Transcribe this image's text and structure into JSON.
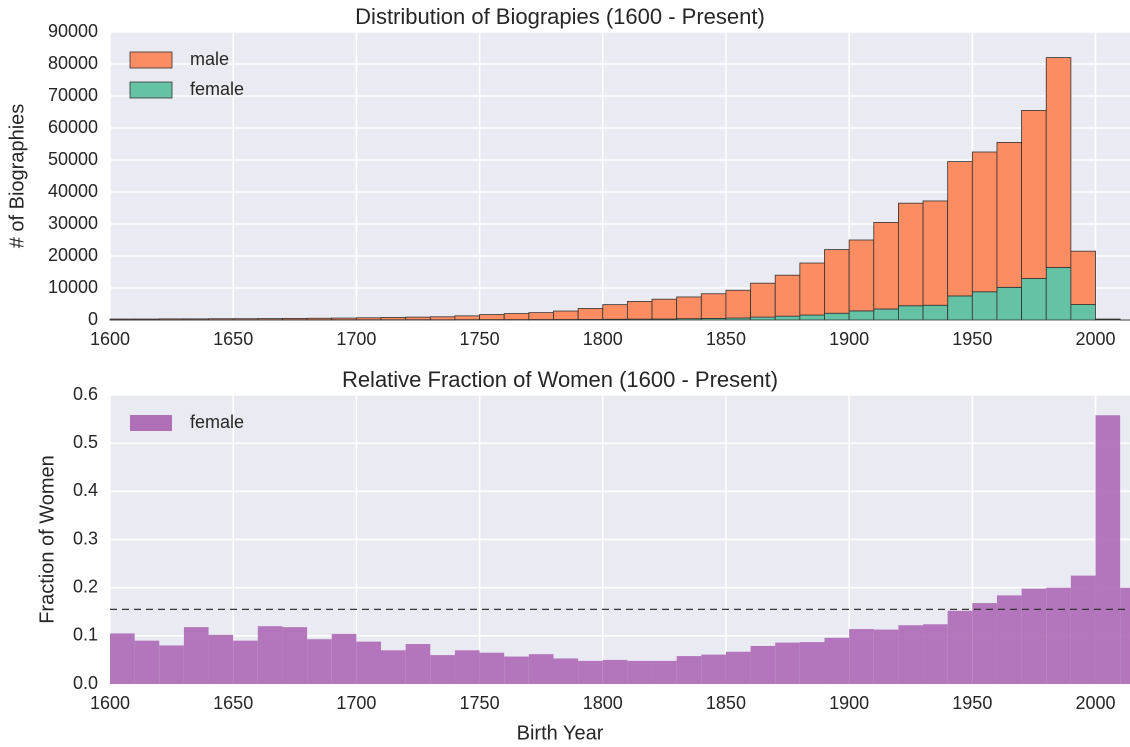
{
  "chart_data": [
    {
      "type": "histogram",
      "title": "Distribution of Biograpies (1600 - Present)",
      "y_label": "# of Biographies",
      "stacked": true,
      "bins": [
        1600,
        1610,
        1620,
        1630,
        1640,
        1650,
        1660,
        1670,
        1680,
        1690,
        1700,
        1710,
        1720,
        1730,
        1740,
        1750,
        1760,
        1770,
        1780,
        1790,
        1800,
        1810,
        1820,
        1830,
        1840,
        1850,
        1860,
        1870,
        1880,
        1890,
        1900,
        1910,
        1920,
        1930,
        1940,
        1950,
        1960,
        1970,
        1980,
        1990,
        2000,
        2010,
        2014
      ],
      "series": [
        {
          "name": "male",
          "color": "#fc8d62",
          "values": [
            268,
            273,
            322,
            309,
            359,
            364,
            396,
            441,
            499,
            538,
            638,
            744,
            825,
            940,
            1209,
            1589,
            1886,
            2157,
            2652,
            3427,
            4560,
            5522,
            6188,
            6782,
            7700,
            8677,
            10591,
            12796,
            16251,
            19888,
            22150,
            27053,
            32047,
            32587,
            41976,
            43680,
            45288,
            52531,
            65600,
            16662,
            133,
            8
          ]
        },
        {
          "name": "female",
          "color": "#66c2a5",
          "values": [
            32,
            27,
            28,
            41,
            41,
            36,
            54,
            59,
            51,
            62,
            62,
            56,
            75,
            60,
            91,
            111,
            114,
            143,
            148,
            173,
            240,
            278,
            312,
            418,
            500,
            623,
            909,
            1204,
            1549,
            2112,
            2850,
            3447,
            4453,
            4613,
            7524,
            8820,
            10212,
            12969,
            16400,
            4838,
            167,
            2
          ]
        }
      ],
      "xlim": [
        1600,
        2014
      ],
      "xticks": [
        1600,
        1650,
        1700,
        1750,
        1800,
        1850,
        1900,
        1950,
        2000
      ],
      "ylim": [
        0,
        90000
      ],
      "yticks": [
        0,
        10000,
        20000,
        30000,
        40000,
        50000,
        60000,
        70000,
        80000,
        90000
      ],
      "grid": true,
      "legend": "upper left"
    },
    {
      "type": "histogram",
      "title": "Relative Fraction of Women (1600 - Present)",
      "y_label": "Fraction of Women",
      "x_label": "Birth Year",
      "bins": [
        1600,
        1610,
        1620,
        1630,
        1640,
        1650,
        1660,
        1670,
        1680,
        1690,
        1700,
        1710,
        1720,
        1730,
        1740,
        1750,
        1760,
        1770,
        1780,
        1790,
        1800,
        1810,
        1820,
        1830,
        1840,
        1850,
        1860,
        1870,
        1880,
        1890,
        1900,
        1910,
        1920,
        1930,
        1940,
        1950,
        1960,
        1970,
        1980,
        1990,
        2000,
        2010,
        2014
      ],
      "series": [
        {
          "name": "female",
          "color": "#b070b8",
          "values": [
            0.105,
            0.09,
            0.08,
            0.118,
            0.102,
            0.09,
            0.12,
            0.118,
            0.093,
            0.104,
            0.088,
            0.07,
            0.083,
            0.06,
            0.07,
            0.065,
            0.057,
            0.062,
            0.053,
            0.048,
            0.05,
            0.048,
            0.048,
            0.058,
            0.061,
            0.067,
            0.079,
            0.086,
            0.087,
            0.096,
            0.114,
            0.113,
            0.122,
            0.124,
            0.152,
            0.168,
            0.184,
            0.198,
            0.2,
            0.225,
            0.558,
            0.2
          ]
        }
      ],
      "hline": 0.155,
      "xlim": [
        1600,
        2014
      ],
      "xticks": [
        1600,
        1650,
        1700,
        1750,
        1800,
        1850,
        1900,
        1950,
        2000
      ],
      "ylim": [
        0,
        0.6
      ],
      "yticks": [
        {
          "value": 0,
          "label": "0.0"
        },
        0.1,
        0.2,
        0.3,
        0.4,
        0.5,
        0.6
      ],
      "grid": true,
      "legend": "upper left"
    }
  ]
}
